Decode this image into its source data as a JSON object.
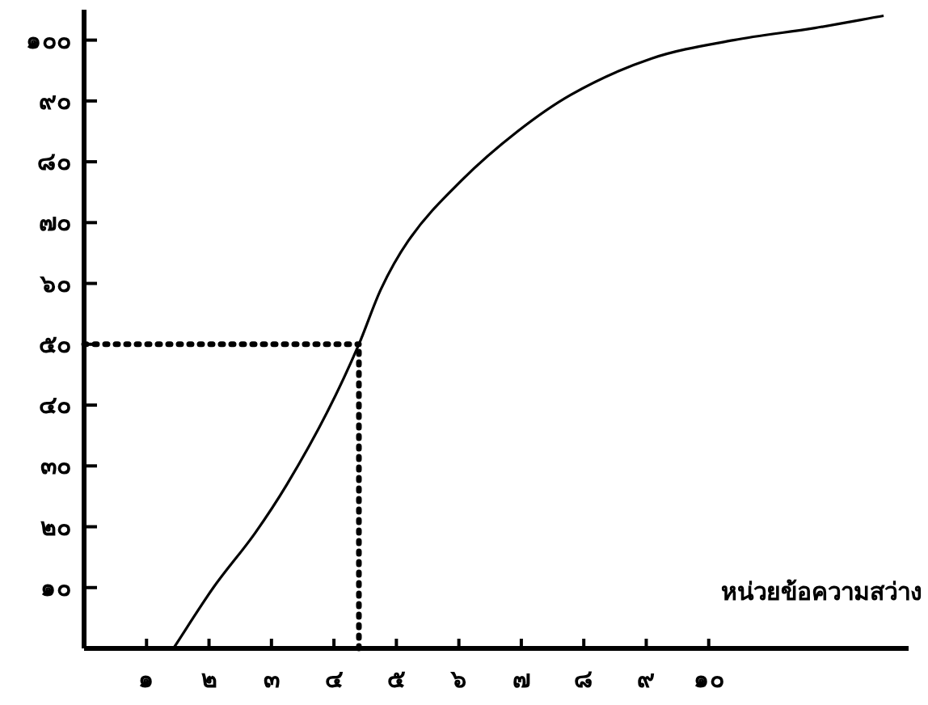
{
  "chart_data": {
    "type": "line",
    "xlabel": "หน่วยข้อความสว่าง",
    "x": [
      1.43,
      2.07,
      2.74,
      3.25,
      3.9,
      4.4,
      4.75,
      5.19,
      6.05,
      6.94,
      7.79,
      9.09,
      10.4,
      11.7,
      12.8
    ],
    "series": [
      {
        "color": "#000000",
        "values": [
          0,
          10,
          19,
          27,
          39,
          50,
          59,
          67,
          77,
          85,
          91,
          97,
          100,
          102,
          104
        ]
      }
    ],
    "xlim": [
      0,
      13.2
    ],
    "ylim": [
      0,
      105
    ],
    "xticks": [
      {
        "value": 1,
        "label": "๑"
      },
      {
        "value": 2,
        "label": "๒"
      },
      {
        "value": 3,
        "label": "๓"
      },
      {
        "value": 4,
        "label": "๔"
      },
      {
        "value": 5,
        "label": "๕"
      },
      {
        "value": 6,
        "label": "๖"
      },
      {
        "value": 7,
        "label": "๗"
      },
      {
        "value": 8,
        "label": "๘"
      },
      {
        "value": 9,
        "label": "๙"
      },
      {
        "value": 10,
        "label": "๑๐"
      }
    ],
    "yticks": [
      {
        "value": 10,
        "label": "๑๐"
      },
      {
        "value": 20,
        "label": "๒๐"
      },
      {
        "value": 30,
        "label": "๓๐"
      },
      {
        "value": 40,
        "label": "๔๐"
      },
      {
        "value": 50,
        "label": "๕๐"
      },
      {
        "value": 60,
        "label": "๖๐"
      },
      {
        "value": 70,
        "label": "๗๐"
      },
      {
        "value": 80,
        "label": "๘๐"
      },
      {
        "value": 90,
        "label": "๙๐"
      },
      {
        "value": 100,
        "label": "๑๐๐"
      }
    ],
    "ref_lines": [
      {
        "axis": "y",
        "value": 50,
        "line_style": "dotted"
      },
      {
        "axis": "x",
        "value": 4.4,
        "line_style": "dotted"
      }
    ],
    "grid": false,
    "marker": "none",
    "line_style": "solid"
  }
}
